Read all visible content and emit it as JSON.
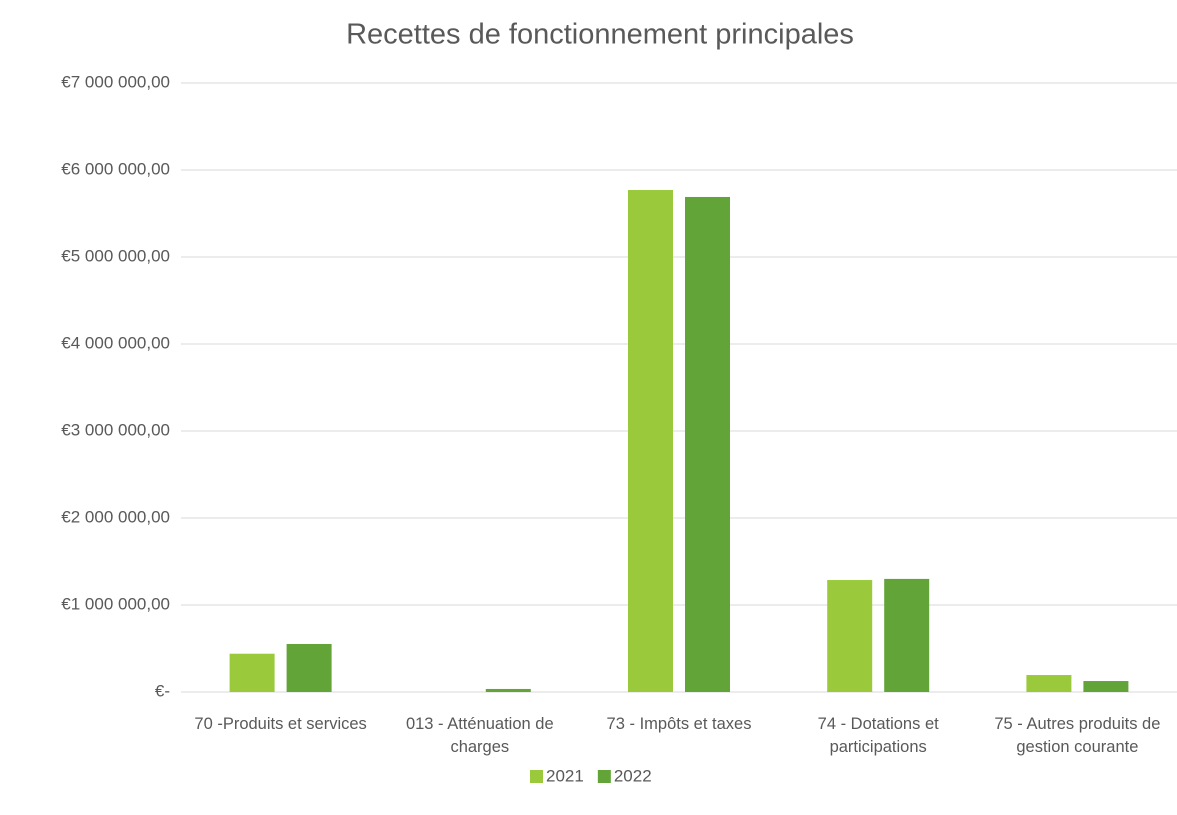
{
  "chart_data": {
    "type": "bar",
    "title": "Recettes de fonctionnement principales",
    "categories": [
      "70 -Produits et services",
      "013 - Atténuation de charges",
      "73 - Impôts et taxes",
      "74 - Dotations et participations",
      "75 - Autres produits de gestion courante"
    ],
    "series": [
      {
        "name": "2021",
        "color": "#9aca3c",
        "values": [
          440000,
          0,
          5770000,
          1287000,
          195000
        ]
      },
      {
        "name": "2022",
        "color": "#62a438",
        "values": [
          552000,
          35000,
          5690000,
          1300000,
          126000
        ]
      }
    ],
    "ylim": [
      0,
      7000000
    ],
    "yticks": [
      {
        "value": 0,
        "label": "€-"
      },
      {
        "value": 1000000,
        "label": "€1 000 000,00"
      },
      {
        "value": 2000000,
        "label": "€2 000 000,00"
      },
      {
        "value": 3000000,
        "label": "€3 000 000,00"
      },
      {
        "value": 4000000,
        "label": "€4 000 000,00"
      },
      {
        "value": 5000000,
        "label": "€5 000 000,00"
      },
      {
        "value": 6000000,
        "label": "€6 000 000,00"
      },
      {
        "value": 7000000,
        "label": "€7 000 000,00"
      }
    ],
    "grid": true,
    "legend": "bottom"
  }
}
